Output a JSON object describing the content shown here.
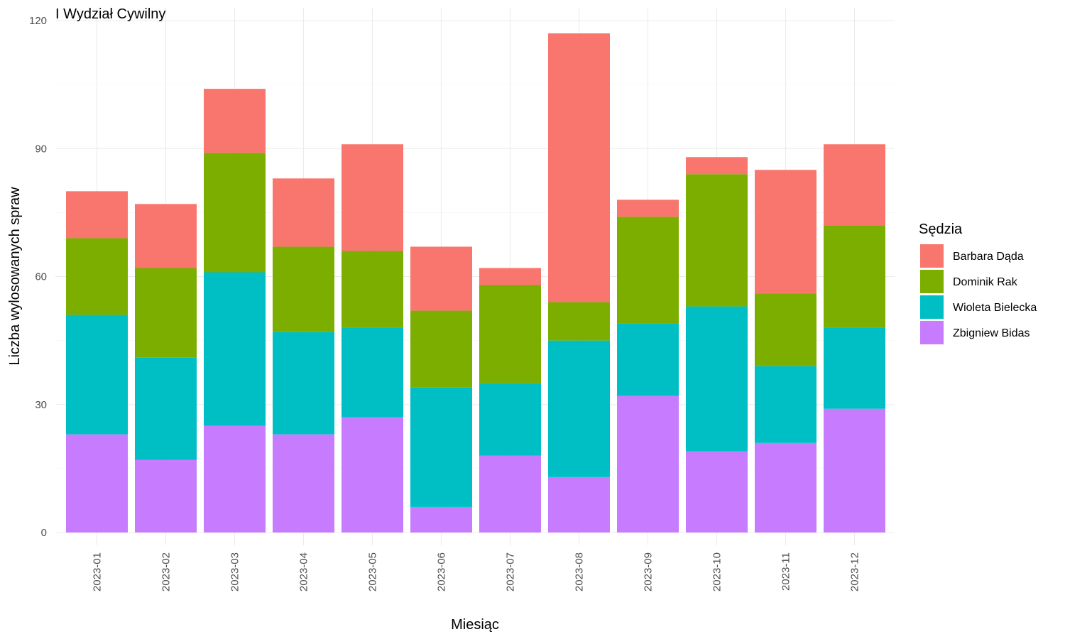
{
  "chart_data": {
    "type": "bar",
    "stacked": true,
    "title": "I Wydział Cywilny",
    "xlabel": "Miesiąc",
    "ylabel": "Liczba wylosowanych spraw",
    "ylim": [
      0,
      120
    ],
    "yticks": [
      0,
      30,
      60,
      90,
      120
    ],
    "grid": true,
    "legend_title": "Sędzia",
    "legend_position": "right",
    "categories": [
      "2023-01",
      "2023-02",
      "2023-03",
      "2023-04",
      "2023-05",
      "2023-06",
      "2023-07",
      "2023-08",
      "2023-09",
      "2023-10",
      "2023-11",
      "2023-12"
    ],
    "series": [
      {
        "name": "Zbigniew Bidas",
        "color": "#C77CFF",
        "values": [
          23,
          17,
          25,
          23,
          27,
          6,
          18,
          13,
          32,
          19,
          21,
          29
        ]
      },
      {
        "name": "Wioleta Bielecka",
        "color": "#00BFC4",
        "values": [
          28,
          24,
          36,
          24,
          21,
          28,
          17,
          32,
          17,
          34,
          18,
          19
        ]
      },
      {
        "name": "Dominik Rak",
        "color": "#7CAE00",
        "values": [
          18,
          21,
          28,
          20,
          18,
          18,
          23,
          9,
          25,
          31,
          17,
          24
        ]
      },
      {
        "name": "Barbara Dąda",
        "color": "#F8766D",
        "values": [
          11,
          15,
          15,
          16,
          25,
          15,
          4,
          63,
          4,
          4,
          29,
          19
        ]
      }
    ],
    "legend_order": [
      "Barbara Dąda",
      "Dominik Rak",
      "Wioleta Bielecka",
      "Zbigniew Bidas"
    ]
  }
}
